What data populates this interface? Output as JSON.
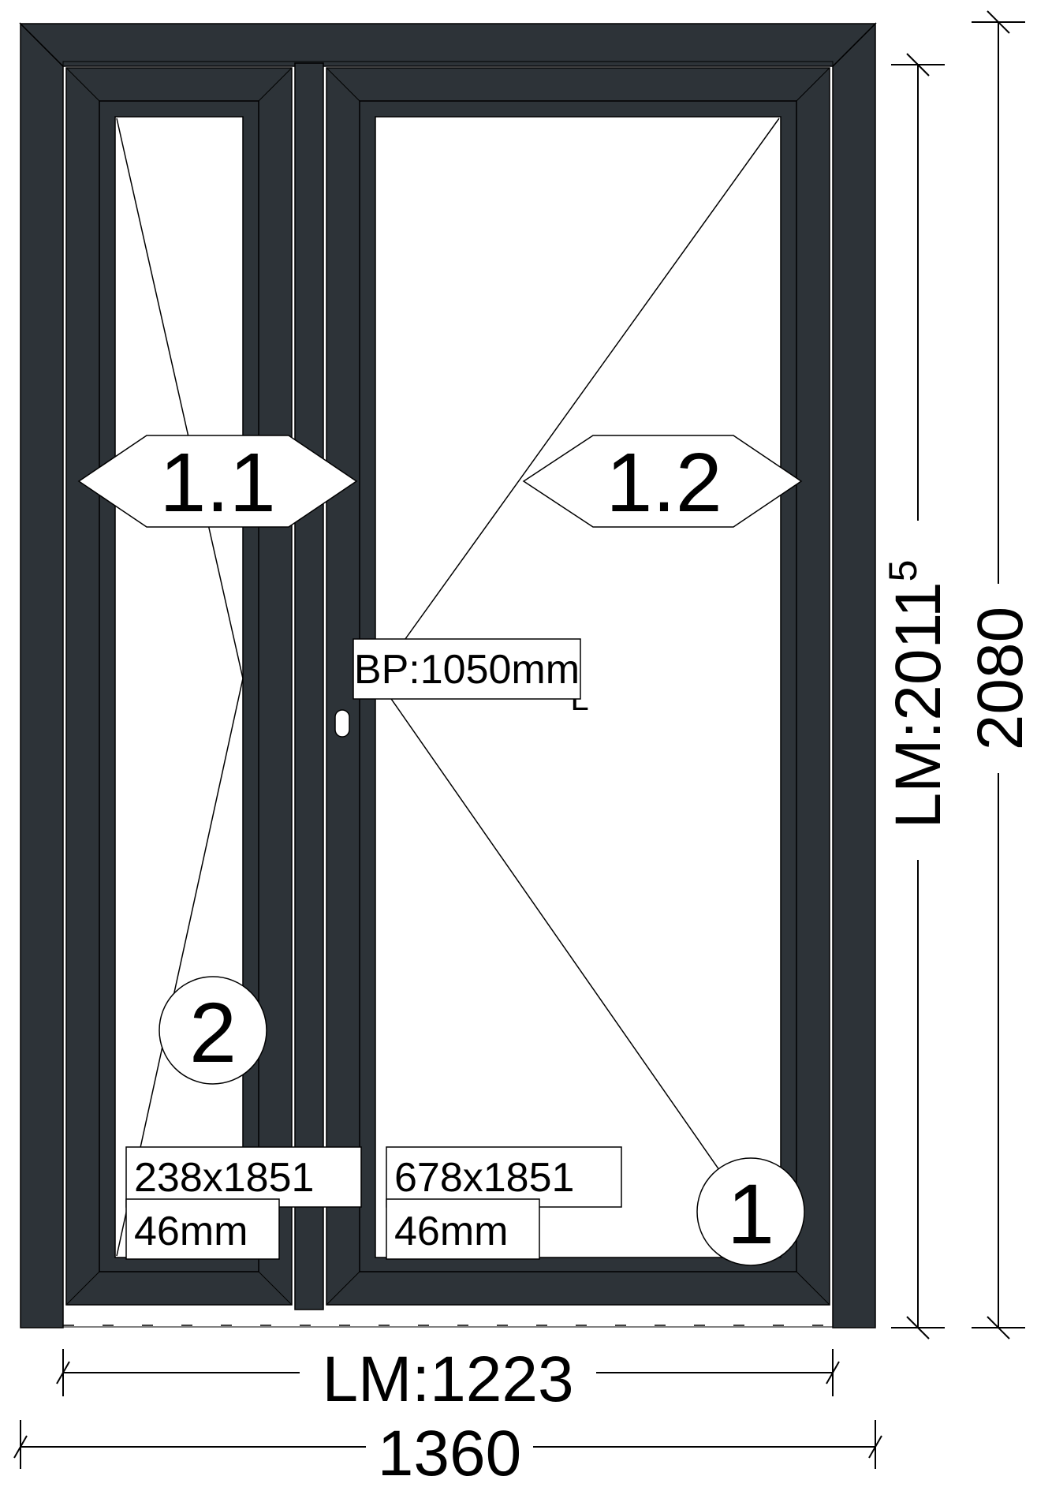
{
  "colors": {
    "frame": "#2d3338",
    "line": "#000000",
    "background": "#ffffff"
  },
  "sashes": [
    {
      "id": "1.1",
      "label": "1.1",
      "size": "238x1851",
      "thickness": "46mm",
      "marker": "2"
    },
    {
      "id": "1.2",
      "label": "1.2",
      "size": "678x1851",
      "thickness": "46mm",
      "marker": "1"
    }
  ],
  "handle_note": "BP:1050mm",
  "opening_mark": "L",
  "dimensions": {
    "clear_width": "LM:1223",
    "total_width": "1360",
    "clear_height_main": "LM:2011",
    "clear_height_sup": "5",
    "total_height": "2080"
  }
}
